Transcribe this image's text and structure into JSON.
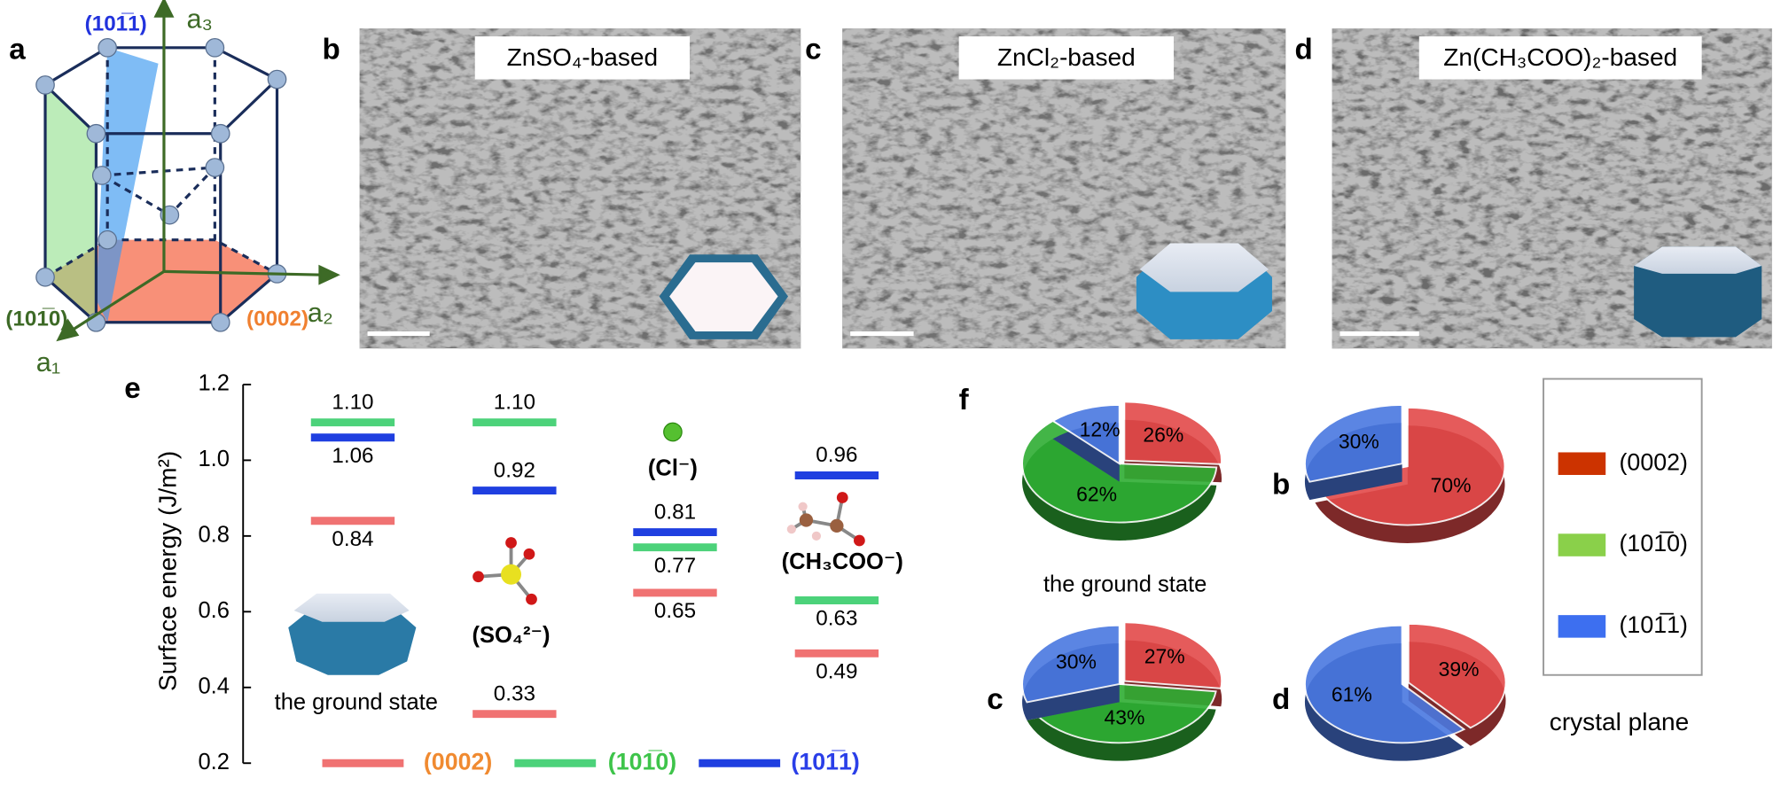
{
  "panels": {
    "a": {
      "label": "a",
      "axes": [
        "a₁",
        "a₂",
        "a₃"
      ],
      "planes": [
        "(101̅1)",
        "(101̅0)",
        "(0002)"
      ]
    },
    "b": {
      "label": "b",
      "title": "ZnSO₄-based"
    },
    "c": {
      "label": "c",
      "title": "ZnCl₂-based"
    },
    "d": {
      "label": "d",
      "title": "Zn(CH₃COO)₂-based"
    }
  },
  "chart_data": [
    {
      "type": "level",
      "label": "e",
      "ylabel": "Surface energy (J/m²)",
      "categories": [
        "the ground state",
        "(SO₄²⁻)",
        "(Cl⁻)",
        "(CH₃COO⁻)"
      ],
      "ylim": [
        0.2,
        1.2
      ],
      "yticks": [
        0.2,
        0.4,
        0.6,
        0.8,
        {
          "value": 1,
          "label": "1.0"
        },
        1.2
      ],
      "series": [
        {
          "name": "(0002)",
          "color": "#f07272",
          "label_color": "#f08a30",
          "values": [
            0.84,
            0.33,
            0.65,
            0.49
          ],
          "value_labels": [
            "0.84",
            "0.33",
            "0.65",
            "0.49"
          ]
        },
        {
          "name": "(101̅0)",
          "color": "#4cd27a",
          "label_color": "#3ec44a",
          "values": [
            1.1,
            1.1,
            0.77,
            0.63
          ],
          "value_labels": [
            "1.10",
            "1.10",
            "0.77",
            "0.63"
          ]
        },
        {
          "name": "(101̅1)",
          "color": "#1f3fe0",
          "label_color": "#2a3fe8",
          "values": [
            1.06,
            0.92,
            0.81,
            0.96
          ],
          "value_labels": [
            "1.06",
            "0.92",
            "0.81",
            "0.96"
          ]
        }
      ]
    },
    {
      "type": "pie",
      "label": "f",
      "legend_title": "crystal plane",
      "categories": [
        "(0002)",
        "(101̅0)",
        "(101̅1)"
      ],
      "colors": [
        "#e34a4a",
        "#2fae34",
        "#4a78e0"
      ],
      "legend_colors": [
        "#cc3300",
        "#8ad04a",
        "#3d6ff0"
      ],
      "pies": [
        {
          "label": "the ground state",
          "values": [
            26,
            62,
            12
          ],
          "value_labels": [
            "26%",
            "62%",
            "12%"
          ]
        },
        {
          "label": "b",
          "values": [
            70,
            0,
            30
          ],
          "value_labels": [
            "70%",
            null,
            "30%"
          ]
        },
        {
          "label": "c",
          "values": [
            27,
            43,
            30
          ],
          "value_labels": [
            "27%",
            "43%",
            "30%"
          ]
        },
        {
          "label": "d",
          "values": [
            39,
            0,
            61
          ],
          "value_labels": [
            "39%",
            null,
            "61%"
          ]
        }
      ]
    }
  ]
}
